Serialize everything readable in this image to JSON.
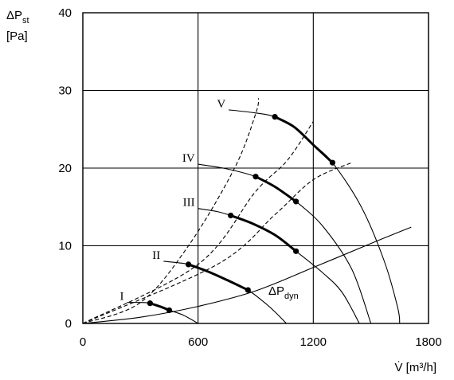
{
  "chart_data": {
    "type": "line",
    "y_axis": {
      "label_main": "ΔP",
      "label_sub": "st",
      "unit": "[Pa]",
      "ylim": [
        0,
        40
      ],
      "ticks": [
        "0",
        "10",
        "20",
        "30",
        "40"
      ]
    },
    "x_axis": {
      "label": "V̇ [m³/h]",
      "xlim": [
        0,
        1800
      ],
      "ticks": [
        "0",
        "600",
        "1200",
        "1800"
      ]
    },
    "grid": true,
    "fan_curves": [
      {
        "name": "I",
        "points": [
          [
            230,
            2.7
          ],
          [
            300,
            2.7
          ],
          [
            350,
            2.6
          ],
          [
            400,
            2.2
          ],
          [
            450,
            1.7
          ],
          [
            520,
            1.1
          ],
          [
            600,
            0
          ]
        ],
        "operating_range": [
          [
            350,
            2.6
          ],
          [
            450,
            1.7
          ]
        ]
      },
      {
        "name": "II",
        "points": [
          [
            420,
            8.0
          ],
          [
            500,
            7.8
          ],
          [
            550,
            7.6
          ],
          [
            650,
            6.7
          ],
          [
            750,
            5.6
          ],
          [
            860,
            4.3
          ],
          [
            950,
            2.6
          ],
          [
            1000,
            1.5
          ],
          [
            1060,
            0
          ]
        ],
        "operating_range": [
          [
            550,
            7.6
          ],
          [
            860,
            4.3
          ]
        ]
      },
      {
        "name": "III",
        "points": [
          [
            600,
            14.8
          ],
          [
            700,
            14.4
          ],
          [
            770,
            13.9
          ],
          [
            880,
            12.9
          ],
          [
            1000,
            11.4
          ],
          [
            1110,
            9.3
          ],
          [
            1250,
            6.5
          ],
          [
            1350,
            4.0
          ],
          [
            1440,
            0
          ]
        ],
        "operating_range": [
          [
            770,
            13.9
          ],
          [
            1110,
            9.3
          ]
        ]
      },
      {
        "name": "IV",
        "points": [
          [
            600,
            20.5
          ],
          [
            750,
            19.9
          ],
          [
            900,
            18.9
          ],
          [
            1000,
            17.6
          ],
          [
            1110,
            15.7
          ],
          [
            1250,
            12.5
          ],
          [
            1400,
            7.0
          ],
          [
            1500,
            0
          ]
        ],
        "operating_range": [
          [
            900,
            18.9
          ],
          [
            1110,
            15.7
          ]
        ]
      },
      {
        "name": "V",
        "points": [
          [
            760,
            27.5
          ],
          [
            900,
            27.1
          ],
          [
            1000,
            26.6
          ],
          [
            1100,
            25.3
          ],
          [
            1200,
            23.0
          ],
          [
            1300,
            20.7
          ],
          [
            1450,
            15.0
          ],
          [
            1570,
            8.0
          ],
          [
            1640,
            2.0
          ],
          [
            1650,
            0
          ]
        ],
        "operating_range": [
          [
            1000,
            26.6
          ],
          [
            1300,
            20.7
          ]
        ]
      }
    ],
    "system_curves": [
      {
        "points": [
          [
            0,
            0
          ],
          [
            300,
            2.7
          ],
          [
            550,
            10
          ],
          [
            790,
            20
          ],
          [
            900,
            27
          ],
          [
            915,
            29
          ]
        ]
      },
      {
        "points": [
          [
            0,
            0
          ],
          [
            600,
            7.6
          ],
          [
            900,
            17
          ],
          [
            1065,
            21
          ],
          [
            1200,
            26
          ]
        ]
      },
      {
        "points": [
          [
            0,
            0
          ],
          [
            700,
            7.6
          ],
          [
            1000,
            14
          ],
          [
            1200,
            18.5
          ],
          [
            1400,
            20.7
          ]
        ]
      }
    ],
    "dynamic_pressure_curve": {
      "label_main": "ΔP",
      "label_sub": "dyn",
      "points": [
        [
          0,
          0
        ],
        [
          300,
          0.8
        ],
        [
          600,
          2.2
        ],
        [
          900,
          4.2
        ],
        [
          1200,
          7.2
        ],
        [
          1500,
          10.3
        ],
        [
          1710,
          12.4
        ]
      ]
    }
  }
}
